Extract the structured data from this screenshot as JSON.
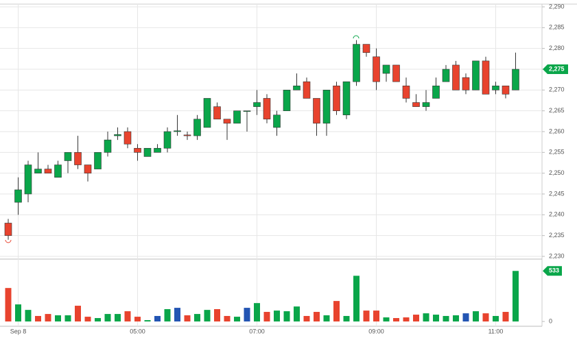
{
  "chart_data": {
    "type": "candlestick",
    "categories": [
      null,
      "Sep 8",
      null,
      null,
      null,
      null,
      null,
      null,
      null,
      null,
      null,
      null,
      null,
      "05:00",
      null,
      null,
      null,
      null,
      null,
      null,
      null,
      null,
      null,
      null,
      null,
      "07:00",
      null,
      null,
      null,
      null,
      null,
      null,
      null,
      null,
      null,
      null,
      null,
      "09:00",
      null,
      null,
      null,
      null,
      null,
      null,
      null,
      null,
      null,
      null,
      null,
      "11:00",
      null,
      null
    ],
    "open": [
      2238,
      2243,
      2245,
      2250,
      2251,
      2249,
      2253,
      2255,
      2252,
      2251,
      2255,
      2259,
      2260,
      2256,
      2254,
      2255,
      2256,
      2260,
      2259.2,
      2259,
      2261,
      2266,
      2263,
      2262,
      2265,
      2266,
      2268,
      2261,
      2265,
      2270,
      2272,
      2268,
      2262,
      2271,
      2264,
      2272,
      2281,
      2278,
      2274,
      2276,
      2271,
      2267,
      2266,
      2268,
      2272,
      2276,
      2273,
      2270,
      2277,
      2270,
      2271,
      2270
    ],
    "high": [
      2239,
      2249,
      2253,
      2255,
      2252,
      2253,
      2255,
      2259,
      2252,
      2255,
      2260,
      2261,
      2261,
      2257,
      2256,
      2257,
      2261,
      2264,
      2260,
      2264,
      2268,
      2267,
      2263,
      2265,
      2265,
      2270,
      2269,
      2265,
      2270,
      2274,
      2273,
      2268,
      2270,
      2272,
      2272,
      2282,
      2281,
      2280,
      2276,
      2276,
      2273,
      2269,
      2270,
      2273,
      2276,
      2277,
      2274,
      2277,
      2278,
      2272,
      2271,
      2279
    ],
    "low": [
      2234,
      2240,
      2243,
      2250,
      2250,
      2249,
      2250,
      2251,
      2248,
      2251,
      2254,
      2258,
      2256,
      2253,
      2254,
      2255,
      2255,
      2259,
      2258,
      2258,
      2261,
      2263,
      2258,
      2262,
      2260,
      2264,
      2262,
      2259,
      2265,
      2270,
      2268,
      2259,
      2259,
      2264,
      2263,
      2271,
      2278,
      2270,
      2272,
      2272,
      2267,
      2266,
      2265,
      2268,
      2272,
      2270,
      2269,
      2270,
      2269,
      2269,
      2268,
      2270
    ],
    "close": [
      2235,
      2246,
      2252,
      2251,
      2250,
      2252,
      2255,
      2252,
      2250,
      2255,
      2258,
      2259.3,
      2257,
      2255,
      2256,
      2256,
      2260,
      2260.2,
      2259,
      2263,
      2268,
      2263,
      2262,
      2265,
      2265,
      2267,
      2263,
      2264,
      2270,
      2271,
      2268,
      2262,
      2270,
      2265,
      2272,
      2281,
      2279,
      2272,
      2276,
      2272,
      2268,
      2266,
      2267,
      2271,
      2275,
      2270,
      2270,
      2277,
      2269,
      2271,
      2269,
      2275
    ],
    "up_color": "#0aa64a",
    "down_color": "#e8432e",
    "ylim": [
      2230,
      2290
    ],
    "yticks": [
      {
        "value": 2230,
        "label": "2,230"
      },
      {
        "value": 2235,
        "label": "2,235"
      },
      {
        "value": 2240,
        "label": "2,240"
      },
      {
        "value": 2245,
        "label": "2,245"
      },
      {
        "value": 2250,
        "label": "2,250"
      },
      {
        "value": 2255,
        "label": "2,255"
      },
      {
        "value": 2260,
        "label": "2,260"
      },
      {
        "value": 2265,
        "label": "2,265"
      },
      {
        "value": 2270,
        "label": "2,270"
      },
      {
        "value": 2275,
        "label": "2,275"
      },
      {
        "value": 2280,
        "label": "2,280"
      },
      {
        "value": 2285,
        "label": "2,285"
      },
      {
        "value": 2290,
        "label": "2,290"
      }
    ],
    "grid": true,
    "last_price": {
      "value": 2275,
      "label": "2,275"
    },
    "volume": {
      "values": [
        353,
        180,
        122,
        58,
        79,
        65,
        65,
        166,
        50,
        36,
        79,
        79,
        108,
        50,
        14,
        58,
        130,
        144,
        65,
        79,
        122,
        130,
        58,
        50,
        144,
        194,
        101,
        115,
        108,
        158,
        58,
        101,
        65,
        216,
        58,
        482,
        115,
        115,
        43,
        36,
        43,
        72,
        86,
        72,
        58,
        65,
        86,
        108,
        86,
        58,
        101,
        533
      ],
      "colors": [
        "#e8432e",
        "#0aa64a",
        "#0aa64a",
        "#e8432e",
        "#e8432e",
        "#0aa64a",
        "#0aa64a",
        "#e8432e",
        "#e8432e",
        "#0aa64a",
        "#0aa64a",
        "#0aa64a",
        "#e8432e",
        "#e8432e",
        "#0aa64a",
        "#2355b3",
        "#0aa64a",
        "#2355b3",
        "#e8432e",
        "#0aa64a",
        "#0aa64a",
        "#e8432e",
        "#e8432e",
        "#0aa64a",
        "#2355b3",
        "#0aa64a",
        "#e8432e",
        "#0aa64a",
        "#0aa64a",
        "#0aa64a",
        "#e8432e",
        "#e8432e",
        "#0aa64a",
        "#e8432e",
        "#0aa64a",
        "#0aa64a",
        "#e8432e",
        "#e8432e",
        "#0aa64a",
        "#e8432e",
        "#e8432e",
        "#e8432e",
        "#0aa64a",
        "#0aa64a",
        "#0aa64a",
        "#0aa64a",
        "#2355b3",
        "#0aa64a",
        "#e8432e",
        "#0aa64a",
        "#e8432e",
        "#0aa64a"
      ],
      "ylim": [
        0,
        600
      ],
      "yticks": [
        0
      ],
      "last_label": 533
    }
  }
}
